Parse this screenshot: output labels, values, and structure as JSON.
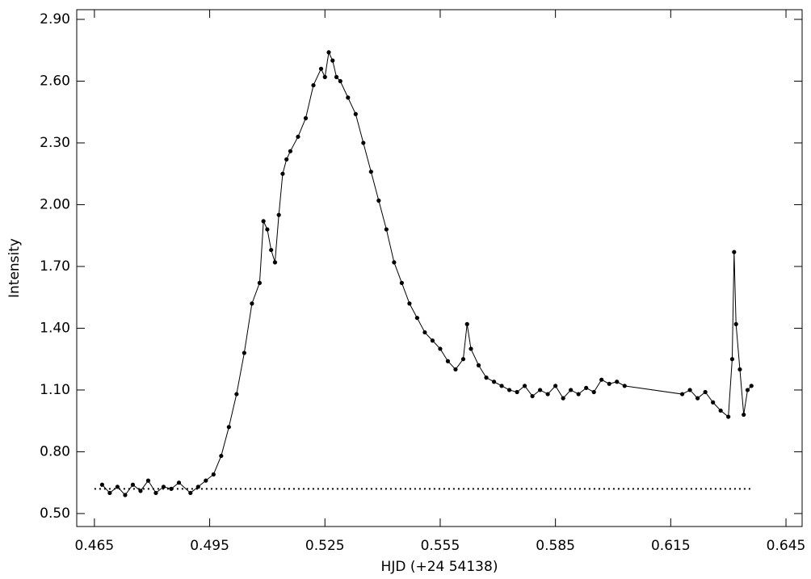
{
  "chart_data": {
    "type": "line",
    "xlabel": "HJD (+24 54138)",
    "ylabel": "Intensity",
    "xlim": [
      0.4604,
      0.6492
    ],
    "ylim": [
      0.437,
      2.947
    ],
    "xticks": [
      0.465,
      0.495,
      0.525,
      0.555,
      0.585,
      0.615,
      0.645
    ],
    "yticks": [
      {
        "value": 0.5,
        "label": "0.50"
      },
      {
        "value": 0.8,
        "label": "0.80"
      },
      {
        "value": 1.1,
        "label": "1.10"
      },
      {
        "value": 1.4,
        "label": "1.40"
      },
      {
        "value": 1.7,
        "label": "1.70"
      },
      {
        "value": 2.0,
        "label": "2.00"
      },
      {
        "value": 2.3,
        "label": "2.30"
      },
      {
        "value": 2.6,
        "label": "2.60"
      },
      {
        "value": 2.9,
        "label": "2.90"
      }
    ],
    "color": "#000000",
    "x": [
      0.467,
      0.469,
      0.471,
      0.473,
      0.475,
      0.477,
      0.479,
      0.481,
      0.483,
      0.485,
      0.487,
      0.49,
      0.492,
      0.494,
      0.496,
      0.498,
      0.5,
      0.502,
      0.504,
      0.506,
      0.508,
      0.509,
      0.51,
      0.511,
      0.512,
      0.513,
      0.514,
      0.515,
      0.516,
      0.518,
      0.52,
      0.522,
      0.524,
      0.525,
      0.526,
      0.527,
      0.528,
      0.529,
      0.531,
      0.533,
      0.535,
      0.537,
      0.539,
      0.541,
      0.543,
      0.545,
      0.547,
      0.549,
      0.551,
      0.553,
      0.555,
      0.557,
      0.559,
      0.561,
      0.562,
      0.563,
      0.565,
      0.567,
      0.569,
      0.571,
      0.573,
      0.575,
      0.577,
      0.579,
      0.581,
      0.583,
      0.585,
      0.587,
      0.589,
      0.591,
      0.593,
      0.595,
      0.597,
      0.599,
      0.601,
      0.603,
      0.618,
      0.62,
      0.622,
      0.624,
      0.626,
      0.628,
      0.63,
      0.631,
      0.6315,
      0.632,
      0.633,
      0.634,
      0.635,
      0.636
    ],
    "values": [
      0.64,
      0.6,
      0.63,
      0.59,
      0.64,
      0.61,
      0.66,
      0.6,
      0.63,
      0.62,
      0.65,
      0.6,
      0.63,
      0.66,
      0.69,
      0.78,
      0.92,
      1.08,
      1.28,
      1.52,
      1.62,
      1.92,
      1.88,
      1.78,
      1.72,
      1.95,
      2.15,
      2.22,
      2.26,
      2.33,
      2.42,
      2.58,
      2.66,
      2.62,
      2.74,
      2.7,
      2.62,
      2.6,
      2.52,
      2.44,
      2.3,
      2.16,
      2.02,
      1.88,
      1.72,
      1.62,
      1.52,
      1.45,
      1.38,
      1.34,
      1.3,
      1.24,
      1.2,
      1.25,
      1.42,
      1.3,
      1.22,
      1.16,
      1.14,
      1.12,
      1.1,
      1.09,
      1.12,
      1.07,
      1.1,
      1.08,
      1.12,
      1.06,
      1.1,
      1.08,
      1.11,
      1.09,
      1.15,
      1.13,
      1.14,
      1.12,
      1.08,
      1.1,
      1.06,
      1.09,
      1.04,
      1.0,
      0.97,
      1.25,
      1.77,
      1.42,
      1.2,
      0.98,
      1.1,
      1.12
    ],
    "reference_line": {
      "x": [
        0.465,
        0.636
      ],
      "y": 0.62
    }
  }
}
